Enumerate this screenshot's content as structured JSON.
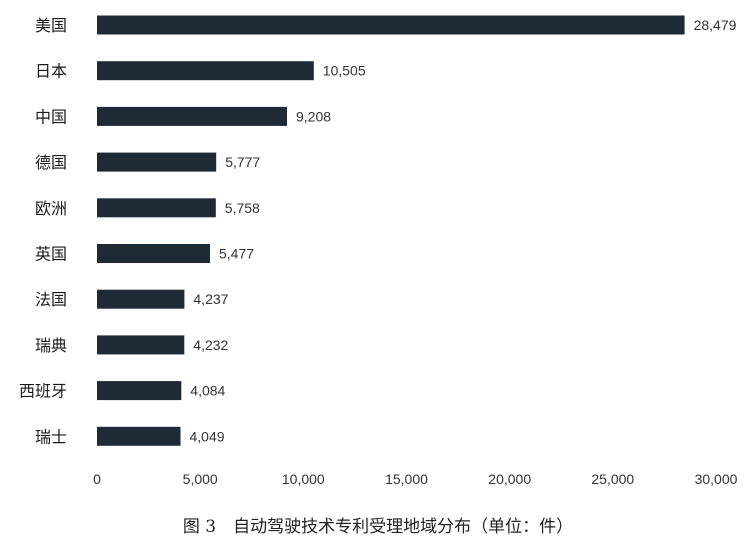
{
  "chart_data": {
    "type": "bar",
    "orientation": "horizontal",
    "categories": [
      "美国",
      "日本",
      "中国",
      "德国",
      "欧洲",
      "英国",
      "法国",
      "瑞典",
      "西班牙",
      "瑞士"
    ],
    "values": [
      28479,
      10505,
      9208,
      5777,
      5758,
      5477,
      4237,
      4232,
      4084,
      4049
    ],
    "value_labels": [
      "28,479",
      "10,505",
      "9,208",
      "5,777",
      "5,758",
      "5,477",
      "4,237",
      "4,232",
      "4,084",
      "4,049"
    ],
    "xlim": [
      0,
      30000
    ],
    "x_ticks": [
      0,
      5000,
      10000,
      15000,
      20000,
      25000,
      30000
    ],
    "x_tick_labels": [
      "0",
      "5,000",
      "10,000",
      "15,000",
      "20,000",
      "25,000",
      "30,000"
    ],
    "bar_color": "#1e2a36",
    "grid": false,
    "legend": "none",
    "caption": "图 3　自动驾驶技术专利受理地域分布（单位：件）"
  }
}
